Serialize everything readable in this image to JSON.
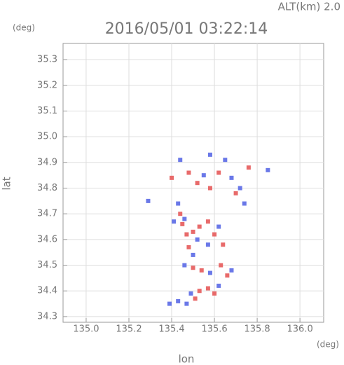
{
  "chart_data": {
    "type": "scatter",
    "title": "2016/05/01 03:22:14",
    "header": "ALT(km)  2.0",
    "y_unit": "(deg)",
    "x_unit": "(deg)",
    "xlabel": "lon",
    "ylabel": "lat",
    "xlim": [
      134.892,
      136.111
    ],
    "ylim": [
      34.278,
      35.363
    ],
    "xticks": [
      {
        "value": 135,
        "label": "135.0"
      },
      135.2,
      135.4,
      135.6,
      135.8,
      {
        "value": 136,
        "label": "136.0"
      }
    ],
    "yticks": [
      34.3,
      34.4,
      34.5,
      34.6,
      34.7,
      34.8,
      34.9,
      {
        "value": 35,
        "label": "35.0"
      },
      35.1,
      35.2,
      35.3
    ],
    "grid": true,
    "series": [
      {
        "color": "#e86a6a",
        "x": [
          135.48,
          135.52,
          135.62,
          135.76,
          135.58,
          135.45,
          135.5,
          135.53,
          135.47,
          135.6,
          135.5,
          135.54,
          135.63,
          135.66,
          135.53,
          135.57,
          135.51,
          135.6,
          135.44,
          135.57,
          135.48,
          135.64,
          135.7,
          135.4
        ],
        "values": [
          34.86,
          34.82,
          34.86,
          34.88,
          34.8,
          34.66,
          34.63,
          34.65,
          34.62,
          34.62,
          34.49,
          34.48,
          34.5,
          34.46,
          34.4,
          34.41,
          34.37,
          34.39,
          34.7,
          34.67,
          34.57,
          34.58,
          34.78,
          34.84
        ]
      },
      {
        "color": "#6a78e8",
        "x": [
          135.44,
          135.58,
          135.65,
          135.55,
          135.68,
          135.72,
          135.43,
          135.46,
          135.41,
          135.52,
          135.57,
          135.62,
          135.46,
          135.58,
          135.68,
          135.49,
          135.62,
          135.43,
          135.47,
          135.39,
          135.5,
          135.29,
          135.74,
          135.85
        ],
        "values": [
          34.91,
          34.93,
          34.91,
          34.85,
          34.84,
          34.8,
          34.74,
          34.68,
          34.67,
          34.6,
          34.58,
          34.65,
          34.5,
          34.47,
          34.48,
          34.39,
          34.42,
          34.36,
          34.35,
          34.35,
          34.54,
          34.75,
          34.74,
          34.87
        ]
      }
    ]
  }
}
